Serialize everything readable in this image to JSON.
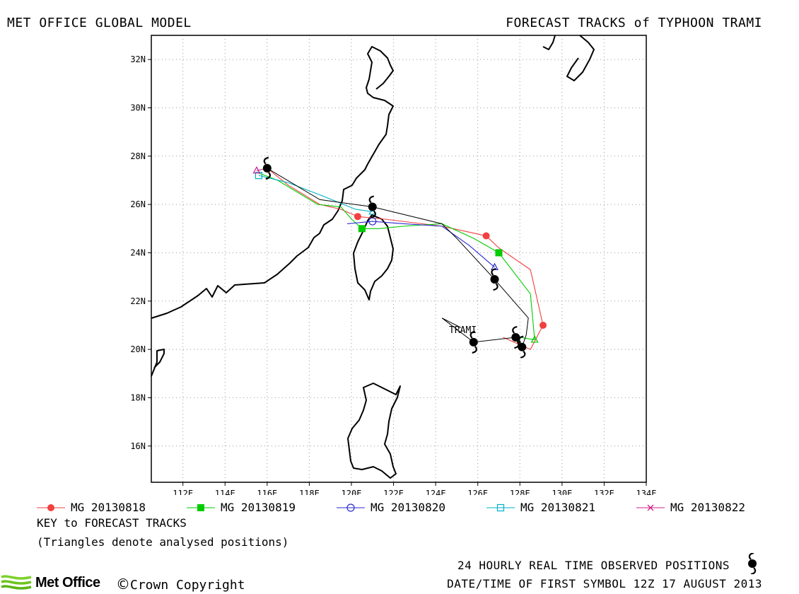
{
  "header": {
    "left_title": "MET OFFICE GLOBAL MODEL",
    "right_title": "FORECAST TRACKS of TYPHOON TRAMI"
  },
  "map": {
    "lon_range": [
      110.5,
      134
    ],
    "lat_range": [
      14.5,
      33
    ],
    "lon_ticks": [
      "112E",
      "114E",
      "116E",
      "118E",
      "120E",
      "122E",
      "124E",
      "126E",
      "128E",
      "130E",
      "132E",
      "134E"
    ],
    "lat_ticks": [
      "16N",
      "18N",
      "20N",
      "22N",
      "24N",
      "26N",
      "28N",
      "30N",
      "32N"
    ],
    "storm_label": "TRAMI",
    "observed_positions": [
      {
        "lon": 125.8,
        "lat": 20.3
      },
      {
        "lon": 128.1,
        "lat": 20.1
      },
      {
        "lon": 127.8,
        "lat": 20.5
      },
      {
        "lon": 126.8,
        "lat": 22.9
      },
      {
        "lon": 121.0,
        "lat": 25.9
      },
      {
        "lon": 116.0,
        "lat": 27.5
      }
    ]
  },
  "tracks": [
    {
      "name": "MG 20130818",
      "color": "#f04040",
      "marker": "filled-circle",
      "points": [
        [
          127.2,
          20.5
        ],
        [
          128.5,
          20.0
        ],
        [
          129.1,
          21.0
        ],
        [
          128.5,
          23.3
        ],
        [
          127.0,
          24.2
        ],
        [
          126.4,
          24.7
        ],
        [
          124.3,
          25.1
        ],
        [
          121.5,
          25.4
        ],
        [
          120.3,
          25.5
        ],
        [
          119.5,
          25.8
        ],
        [
          118.5,
          26.0
        ],
        [
          117.0,
          26.8
        ],
        [
          116.0,
          27.5
        ]
      ],
      "labeled": [
        [
          129.1,
          21.0
        ],
        [
          126.4,
          24.7
        ],
        [
          120.3,
          25.5
        ]
      ]
    },
    {
      "name": "MG 20130819",
      "color": "#00cc00",
      "marker": "filled-square",
      "points": [
        [
          128.0,
          20.5
        ],
        [
          128.7,
          20.4
        ],
        [
          128.5,
          22.3
        ],
        [
          127.0,
          24.0
        ],
        [
          125.8,
          24.6
        ],
        [
          124.3,
          25.2
        ],
        [
          122.5,
          25.1
        ],
        [
          121.3,
          25.0
        ],
        [
          120.5,
          25.0
        ],
        [
          120.0,
          25.4
        ],
        [
          119.5,
          25.9
        ],
        [
          118.4,
          26.0
        ],
        [
          116.5,
          27.0
        ],
        [
          115.6,
          27.3
        ]
      ],
      "labeled": [
        [
          127.0,
          24.0
        ],
        [
          120.5,
          25.0
        ]
      ],
      "triangles": [
        [
          128.7,
          20.4
        ]
      ]
    },
    {
      "name": "MG 20130820",
      "color": "#2a2ad0",
      "marker": "open-circle",
      "points": [
        [
          126.8,
          23.4
        ],
        [
          125.6,
          24.3
        ],
        [
          124.3,
          25.1
        ],
        [
          122.5,
          25.2
        ],
        [
          121.0,
          25.3
        ],
        [
          119.8,
          25.2
        ]
      ],
      "labeled": [
        [
          121.0,
          25.3
        ]
      ],
      "triangles": [
        [
          126.8,
          23.4
        ]
      ]
    },
    {
      "name": "MG 20130821",
      "color": "#00b0c8",
      "marker": "open-square",
      "points": [
        [
          121.0,
          25.7
        ],
        [
          120.2,
          25.8
        ],
        [
          118.5,
          26.4
        ],
        [
          117.0,
          26.9
        ],
        [
          115.6,
          27.2
        ]
      ],
      "labeled": [
        [
          115.6,
          27.2
        ]
      ],
      "triangles": [
        [
          121.0,
          25.7
        ]
      ]
    },
    {
      "name": "MG 20130822",
      "color": "#d0208c",
      "marker": "cross",
      "points": [
        [
          116.0,
          27.5
        ],
        [
          115.5,
          27.4
        ]
      ],
      "labeled": [],
      "triangles": [
        [
          115.5,
          27.4
        ]
      ]
    }
  ],
  "observed_track": {
    "color": "#000000",
    "points": [
      [
        125.2,
        20.9
      ],
      [
        124.3,
        21.3
      ],
      [
        125.8,
        20.3
      ],
      [
        127.8,
        20.5
      ],
      [
        128.1,
        20.1
      ],
      [
        128.3,
        20.6
      ],
      [
        128.4,
        21.3
      ],
      [
        126.8,
        22.9
      ],
      [
        125.0,
        24.6
      ],
      [
        124.3,
        25.2
      ],
      [
        121.0,
        25.9
      ],
      [
        118.5,
        26.2
      ],
      [
        116.0,
        27.5
      ]
    ]
  },
  "key": {
    "title": "KEY to FORECAST TRACKS",
    "note": "(Triangles denote analysed positions)"
  },
  "footer": {
    "observed_label": "24 HOURLY REAL TIME OBSERVED POSITIONS",
    "datetime_label": "DATE/TIME OF FIRST SYMBOL 12Z 17 AUGUST 2013",
    "logo_text": "Met Office",
    "copyright_symbol": "©",
    "copyright_text": "Crown Copyright"
  }
}
